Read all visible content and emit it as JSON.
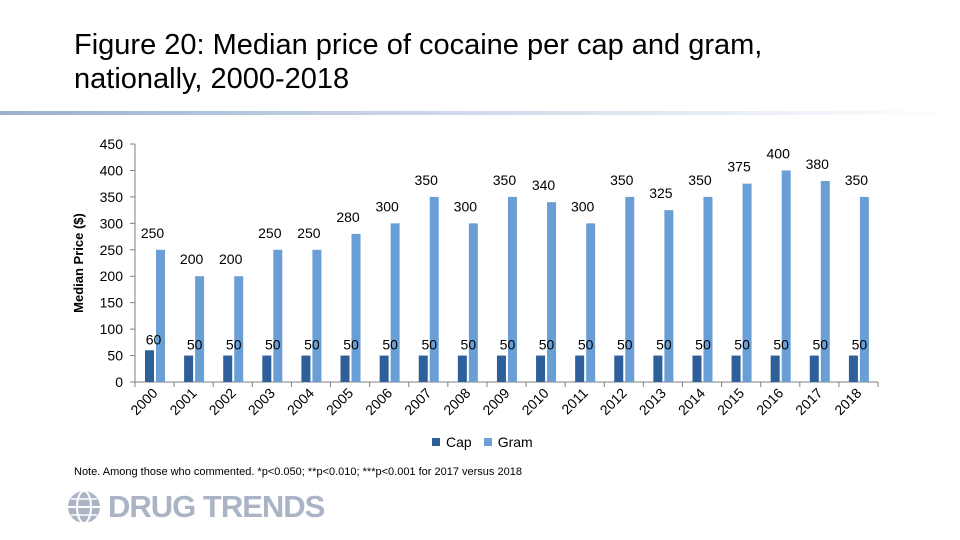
{
  "title": "Figure 20: Median price of cocaine per cap and gram, nationally, 2000-2018",
  "note": "Note. Among those who commented. *p<0.050; **p<0.010; ***p<0.001 for 2017 versus 2018",
  "logo_text": "DRUG TRENDS",
  "colors": {
    "cap": "#2e5f9a",
    "gram": "#6a9fd6"
  },
  "chart_data": {
    "type": "bar",
    "ylabel": "Median Price ($)",
    "xlabel": "",
    "ylim": [
      0,
      450
    ],
    "yticks": [
      0,
      50,
      100,
      150,
      200,
      250,
      300,
      350,
      400,
      450
    ],
    "categories": [
      "2000",
      "2001",
      "2002",
      "2003",
      "2004",
      "2005",
      "2006",
      "2007",
      "2008",
      "2009",
      "2010",
      "2011",
      "2012",
      "2013",
      "2014",
      "2015",
      "2016",
      "2017",
      "2018"
    ],
    "series": [
      {
        "name": "Cap",
        "values": [
          60,
          50,
          50,
          50,
          50,
          50,
          50,
          50,
          50,
          50,
          50,
          50,
          50,
          50,
          50,
          50,
          50,
          50,
          50
        ]
      },
      {
        "name": "Gram",
        "values": [
          250,
          200,
          200,
          250,
          250,
          280,
          300,
          350,
          300,
          350,
          340,
          300,
          350,
          325,
          350,
          375,
          400,
          380,
          350
        ]
      }
    ],
    "legend": "bottom",
    "grid": false
  }
}
